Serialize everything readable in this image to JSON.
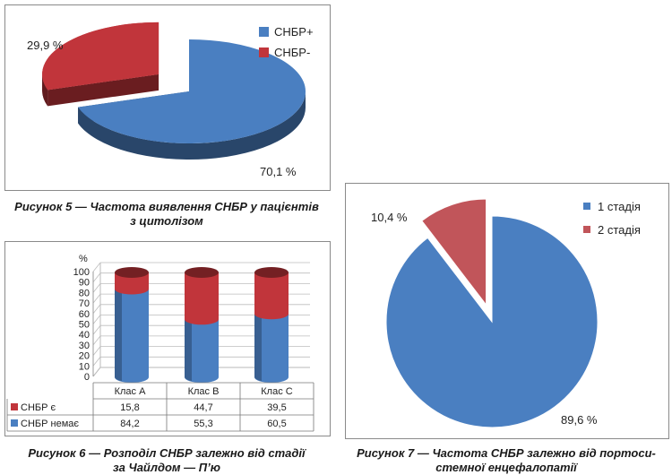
{
  "chart_data": [
    {
      "type": "pie",
      "title": "Рисунок 5 — Частота виявлення СНБР у пацієнтів з цитолізом",
      "caption_lines": [
        "Рисунок 5 — Частота виявлення СНБР у пацієнтів",
        "з цитолізом"
      ],
      "slices": [
        {
          "name": "СНБР+",
          "value": 70.1,
          "label": "70,1 %",
          "color": "#4a7fc1"
        },
        {
          "name": "СНБР-",
          "value": 29.9,
          "label": "29,9 %",
          "color": "#c1353b"
        }
      ],
      "legend": "right"
    },
    {
      "type": "bar",
      "stacked": true,
      "title": "Рисунок 6 — Розподіл СНБР залежно від стадії за Чайлдом — П’ю",
      "caption_lines": [
        "Рисунок 6 — Розподіл СНБР залежно від стадії",
        "за Чайлдом — П’ю"
      ],
      "ylabel": "%",
      "ylim": [
        0,
        100
      ],
      "yticks": [
        "0",
        "10",
        "20",
        "30",
        "40",
        "50",
        "60",
        "70",
        "80",
        "90",
        "100"
      ],
      "categories": [
        "Клас A",
        "Клас B",
        "Клас C"
      ],
      "series": [
        {
          "name": "СНБР немає",
          "values": [
            84.2,
            55.3,
            60.5
          ],
          "labels": [
            "84,2",
            "55,3",
            "60,5"
          ],
          "color": "#4a7fc1"
        },
        {
          "name": "СНБР є",
          "values": [
            15.8,
            44.7,
            39.5
          ],
          "labels": [
            "15,8",
            "44,7",
            "39,5"
          ],
          "color": "#c1353b"
        }
      ],
      "legend": "data-table"
    },
    {
      "type": "pie",
      "title": "Рисунок 7 — Частота СНБР залежно від портосистемної енцефалопатії",
      "caption_lines": [
        "Рисунок 7 — Частота СНБР залежно від портоси-",
        "стемної енцефалопатії"
      ],
      "slices": [
        {
          "name": "1 стадія",
          "value": 89.6,
          "label": "89,6 %",
          "color": "#4a7fc1"
        },
        {
          "name": "2 стадія",
          "value": 10.4,
          "label": "10,4 %",
          "color": "#c1555a"
        }
      ],
      "legend": "top-right"
    }
  ]
}
